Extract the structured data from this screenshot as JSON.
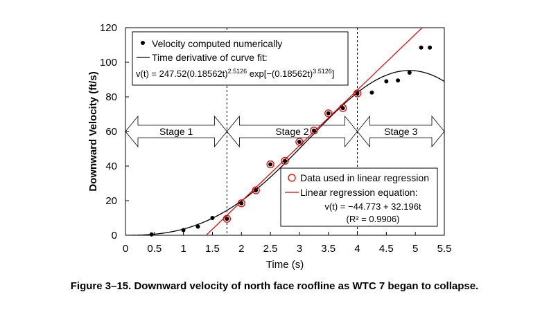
{
  "caption": "Figure 3–15.  Downward velocity of north face roofline as WTC 7 began to collapse.",
  "chart_data": {
    "type": "scatter",
    "xlabel": "Time (s)",
    "ylabel": "Downward Velocity (ft/s)",
    "xlim": [
      0,
      5.5
    ],
    "ylim": [
      0,
      120
    ],
    "xticks": [
      0,
      0.5,
      1,
      1.5,
      2,
      2.5,
      3,
      3.5,
      4,
      4.5,
      5,
      5.5
    ],
    "xtick_labels": [
      "0",
      "0.5",
      "1",
      "1.5",
      "2",
      "2.5",
      "3",
      "3.5",
      "4",
      "4.5",
      "5",
      "5.5"
    ],
    "yticks": [
      0,
      20,
      40,
      60,
      80,
      100,
      120
    ],
    "ytick_labels": [
      "0",
      "20",
      "40",
      "60",
      "80",
      "100",
      "120"
    ],
    "grid": false,
    "series": [
      {
        "name": "Velocity computed numerically",
        "color": "#000000",
        "x": [
          0.45,
          1.0,
          1.25,
          1.5,
          1.75,
          2.0,
          2.25,
          2.5,
          2.75,
          3.0,
          3.25,
          3.5,
          3.75,
          4.0,
          4.25,
          4.5,
          4.7,
          4.9,
          5.1,
          5.25
        ],
        "y": [
          0.5,
          3.0,
          5.0,
          10.0,
          9.5,
          18.5,
          26.0,
          41.0,
          43.0,
          54.0,
          60.5,
          70.5,
          73.5,
          82.0,
          82.5,
          89.0,
          89.5,
          94.0,
          108.5,
          108.5
        ]
      },
      {
        "name": "Data used in linear regression",
        "color": "#e00000",
        "x": [
          1.75,
          2.0,
          2.25,
          2.5,
          2.75,
          3.0,
          3.25,
          3.5,
          3.75,
          4.0
        ],
        "y": [
          9.5,
          18.5,
          26.0,
          41.0,
          43.0,
          54.0,
          60.5,
          70.5,
          73.5,
          82.0
        ]
      }
    ],
    "curves": [
      {
        "name": "Time derivative of curve fit:",
        "color": "#000000",
        "A": 247.52,
        "k": 0.18562,
        "n": 2.5126
      },
      {
        "name": "Linear regression equation:",
        "color": "#e00000",
        "intercept": -44.773,
        "slope": 32.196,
        "r2": 0.9906
      }
    ],
    "legend_top": {
      "placement": "top-left",
      "items": [
        "Velocity computed numerically",
        "Time derivative of curve fit:"
      ],
      "equation_text": "v(t) = 247.52(0.18562t)^2.5126 exp[−(0.18562t)^3.5126]"
    },
    "legend_bottom": {
      "placement": "bottom-right",
      "items": [
        "Data used in linear regression",
        "Linear regression equation:"
      ],
      "equation_line1": "v(t) = −44.773 + 32.196t",
      "equation_line2": "(R² = 0.9906)"
    },
    "stage_dividers": [
      1.75,
      4.0
    ],
    "stages": [
      {
        "label": "Stage 1",
        "from": 0.0,
        "to": 1.75
      },
      {
        "label": "Stage 2",
        "from": 1.75,
        "to": 4.0
      },
      {
        "label": "Stage 3",
        "from": 4.0,
        "to": 5.5
      }
    ],
    "stage_arrow_y": 60
  }
}
